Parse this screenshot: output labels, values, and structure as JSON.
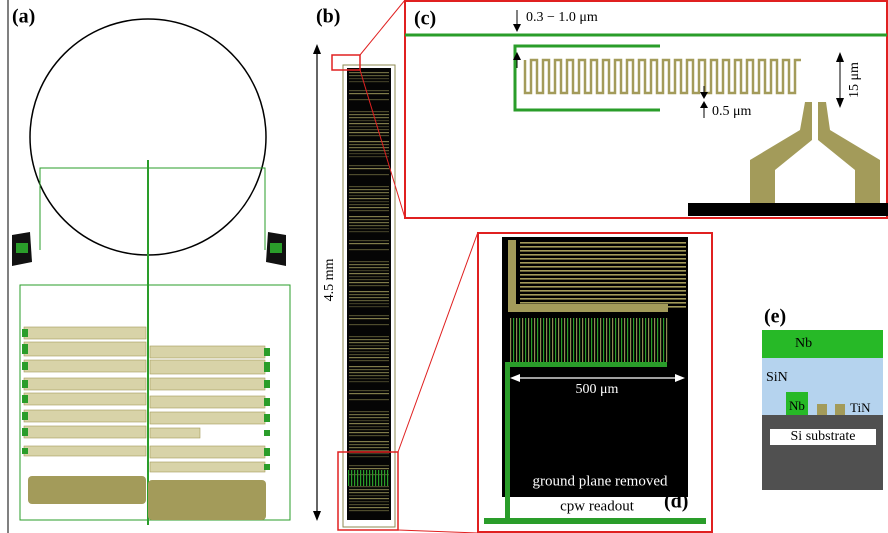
{
  "panels": {
    "a": {
      "label": "(a)"
    },
    "b": {
      "label": "(b)",
      "length": "4.5 mm"
    },
    "c": {
      "label": "(c)",
      "gap": "0.3 − 1.0 μm",
      "height": "15 μm",
      "width": "0.5 μm"
    },
    "d": {
      "label": "(d)",
      "span": "500 μm",
      "note": "ground plane removed",
      "readout": "cpw readout"
    },
    "e": {
      "label": "(e)",
      "top": "Nb",
      "dielectric": "SiN",
      "wire": "Nb",
      "absorber": "TiN",
      "substrate": "Si substrate"
    }
  }
}
